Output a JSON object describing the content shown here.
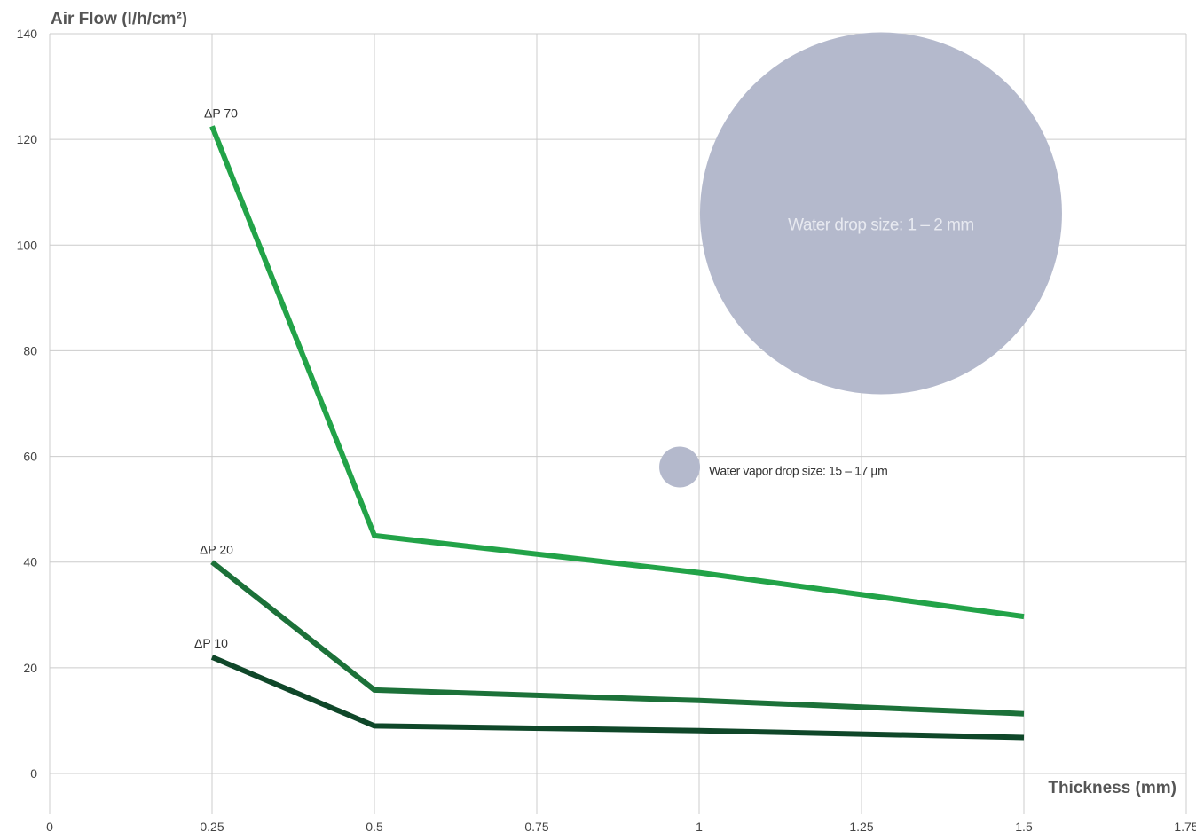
{
  "chart_data": {
    "type": "line",
    "ylabel": "Air Flow (l/h/cm²)",
    "xlabel": "Thickness (mm)",
    "xlim": [
      0,
      1.75
    ],
    "ylim": [
      0,
      140
    ],
    "x_ticks": [
      0,
      0.25,
      0.5,
      0.75,
      1,
      1.25,
      1.5,
      1.75
    ],
    "x_tick_labels": [
      "0",
      "0.25",
      "0.5",
      "0.75",
      "1",
      "1.25",
      "1.5",
      "1.75"
    ],
    "y_ticks": [
      0,
      20,
      40,
      60,
      80,
      100,
      120,
      140
    ],
    "y_tick_labels": [
      "0",
      "20",
      "40",
      "60",
      "80",
      "100",
      "120",
      "140"
    ],
    "grid": true,
    "series": [
      {
        "name": "ΔP 70",
        "color": "#22a348",
        "x": [
          0.25,
          0.5,
          1.0,
          1.5
        ],
        "values": [
          122.5,
          45,
          38,
          29.7
        ]
      },
      {
        "name": "ΔP 20",
        "color": "#1c7139",
        "x": [
          0.25,
          0.5,
          1.0,
          1.5
        ],
        "values": [
          40,
          15.8,
          13.8,
          11.3
        ]
      },
      {
        "name": "ΔP 10",
        "color": "#0f4729",
        "x": [
          0.25,
          0.5,
          1.0,
          1.5
        ],
        "values": [
          22,
          9,
          8.1,
          6.8
        ]
      }
    ],
    "annotations": [
      {
        "text": "Water drop size: 1 – 2 mm",
        "x": 1.28,
        "y": 106,
        "color": "#b4b9cc"
      },
      {
        "text": "Water vapor drop size: 15 – 17 µm",
        "x": 0.97,
        "y": 58,
        "color": "#b4b9cc"
      }
    ]
  }
}
